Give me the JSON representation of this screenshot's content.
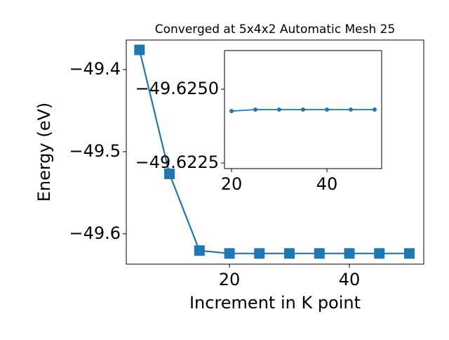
{
  "chart_data": [
    {
      "type": "line",
      "title": "Converged at 5x4x2 Automatic Mesh 25",
      "x_label": "Increment in K point",
      "y_label": "Energy (eV)",
      "x": [
        5,
        10,
        15,
        20,
        25,
        30,
        35,
        40,
        45,
        50
      ],
      "series": [
        {
          "color": "#1f77b4",
          "marker": "square",
          "values": [
            -49.376,
            -49.527,
            -49.6205,
            -49.624,
            -49.624,
            -49.624,
            -49.624,
            -49.624,
            -49.624,
            -49.624
          ]
        }
      ],
      "xlim": [
        2.8,
        52.4
      ],
      "xticks": [
        20,
        40
      ],
      "ylim": [
        -49.637,
        -49.364
      ],
      "yticks": [
        {
          "value": -49.6,
          "label": "−49.6"
        },
        {
          "value": -49.5,
          "label": "−49.5"
        },
        {
          "value": -49.4,
          "label": "−49.4"
        }
      ]
    },
    {
      "type": "line",
      "x": [
        20,
        25,
        30,
        35,
        40,
        45,
        50
      ],
      "series": [
        {
          "color": "#1f77b4",
          "marker": "circle",
          "values": [
            -49.62426,
            -49.62431,
            -49.62431,
            -49.62431,
            -49.62431,
            -49.62431,
            -49.62431
          ]
        }
      ],
      "xlim": [
        18.53,
        51.47
      ],
      "xticks": [
        20,
        40
      ],
      "ylim": [
        -49.62231,
        -49.62631
      ],
      "yticks": [
        {
          "value": -49.625,
          "label": "−49.6250"
        },
        {
          "value": -49.6225,
          "label": "−49.6225"
        }
      ]
    }
  ]
}
